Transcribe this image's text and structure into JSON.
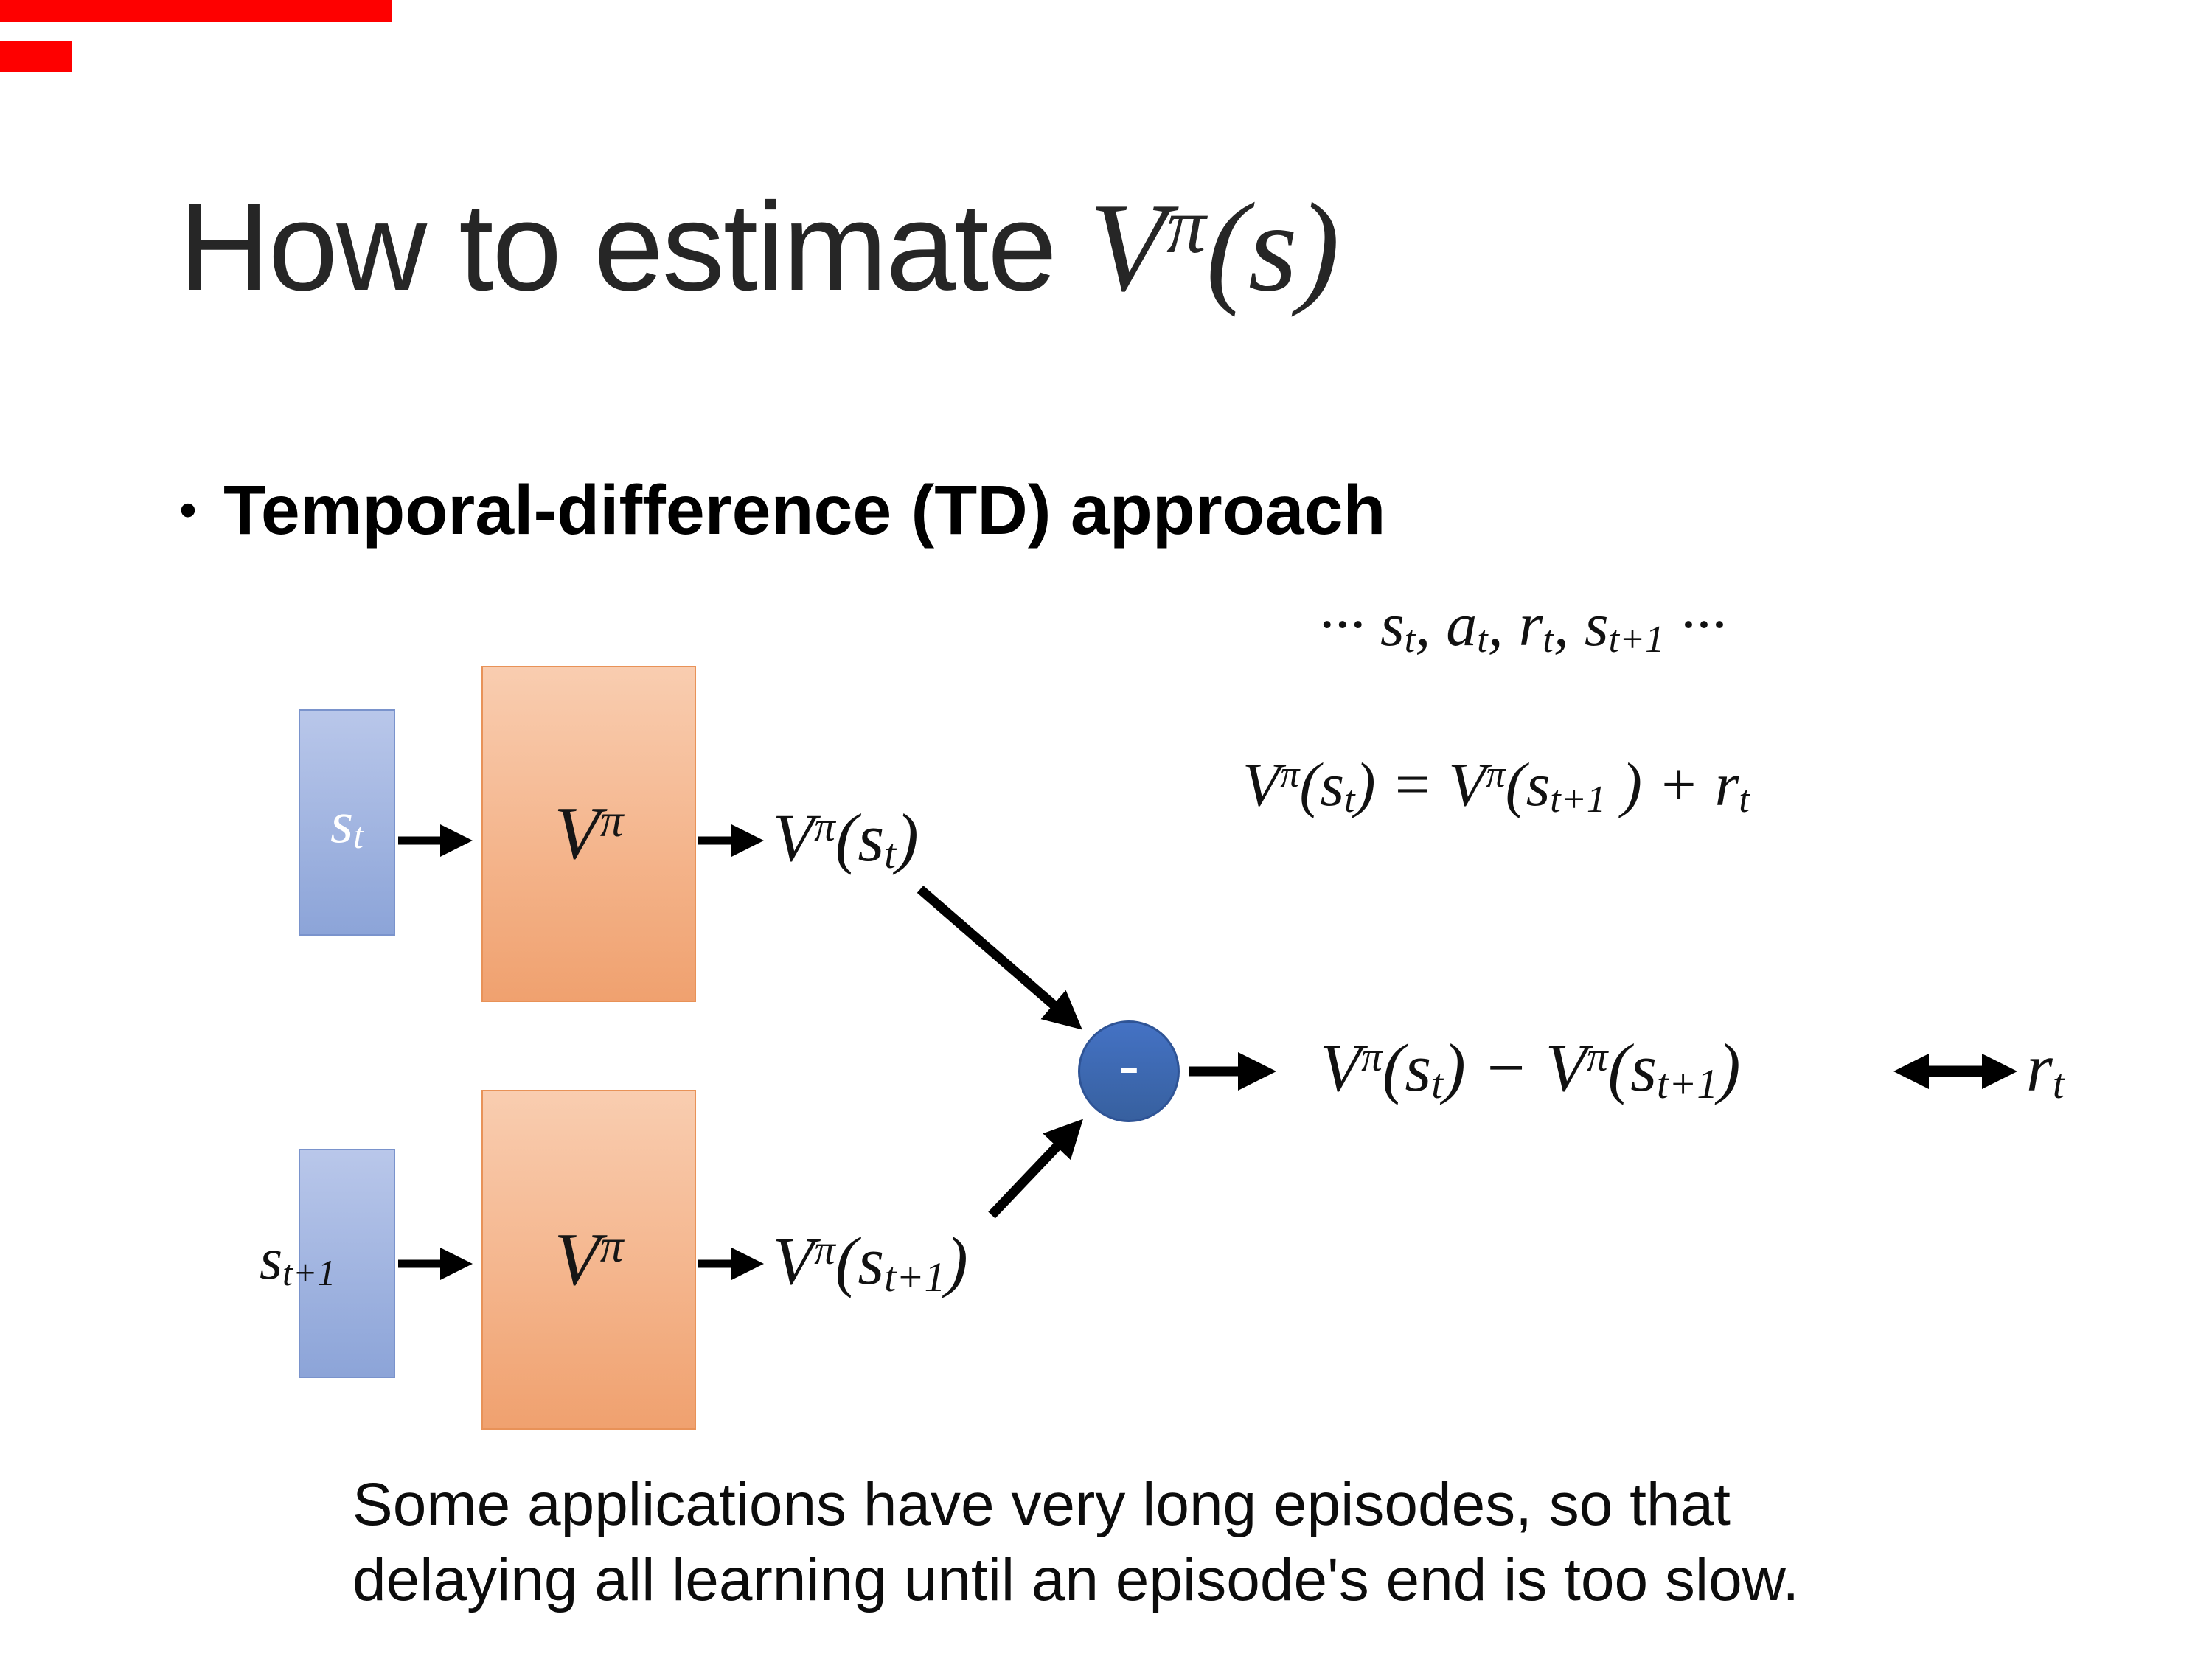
{
  "slide": {
    "title_text": "How to estimate ",
    "bullet_marker": "•",
    "bullet": "Temporal-difference (TD) approach",
    "footer_line1": "Some applications have very long episodes, so that",
    "footer_line2": "delaying all learning until an episode's end is too slow."
  },
  "math": {
    "title_math": [
      {
        "t": "V",
        "s": "n"
      },
      {
        "t": "π",
        "s": "sup"
      },
      {
        "t": "(s)",
        "s": "n"
      }
    ],
    "sequence": [
      {
        "t": "··· s",
        "s": "n"
      },
      {
        "t": "t",
        "s": "sub"
      },
      {
        "t": ", a",
        "s": "n"
      },
      {
        "t": "t",
        "s": "sub"
      },
      {
        "t": ", r",
        "s": "n"
      },
      {
        "t": "t",
        "s": "sub"
      },
      {
        "t": ", s",
        "s": "n"
      },
      {
        "t": "t+1",
        "s": "sub"
      },
      {
        "t": " ···",
        "s": "n"
      }
    ],
    "td_equation": [
      {
        "t": "V",
        "s": "n"
      },
      {
        "t": "π",
        "s": "sup"
      },
      {
        "t": "(s",
        "s": "n"
      },
      {
        "t": "t",
        "s": "sub"
      },
      {
        "t": ") = V",
        "s": "n"
      },
      {
        "t": "π",
        "s": "sup"
      },
      {
        "t": "(s",
        "s": "n"
      },
      {
        "t": "t+1",
        "s": "sub"
      },
      {
        "t": " ) + r",
        "s": "n"
      },
      {
        "t": "t",
        "s": "sub"
      }
    ],
    "s_t": [
      {
        "t": "s",
        "s": "n"
      },
      {
        "t": "t",
        "s": "sub"
      }
    ],
    "s_t1": [
      {
        "t": "s",
        "s": "n"
      },
      {
        "t": "t+1",
        "s": "sub"
      }
    ],
    "v_pi": [
      {
        "t": "V",
        "s": "n"
      },
      {
        "t": "π",
        "s": "sup"
      }
    ],
    "v_pi_st": [
      {
        "t": "V",
        "s": "n"
      },
      {
        "t": "π",
        "s": "sup"
      },
      {
        "t": "(s",
        "s": "n"
      },
      {
        "t": "t",
        "s": "sub"
      },
      {
        "t": ")",
        "s": "n"
      }
    ],
    "v_pi_st1": [
      {
        "t": "V",
        "s": "n"
      },
      {
        "t": "π",
        "s": "sup"
      },
      {
        "t": "(s",
        "s": "n"
      },
      {
        "t": "t+1",
        "s": "sub"
      },
      {
        "t": ")",
        "s": "n"
      }
    ],
    "difference": [
      {
        "t": "V",
        "s": "n"
      },
      {
        "t": "π",
        "s": "sup"
      },
      {
        "t": "(s",
        "s": "n"
      },
      {
        "t": "t",
        "s": "sub"
      },
      {
        "t": ") − V",
        "s": "n"
      },
      {
        "t": "π",
        "s": "sup"
      },
      {
        "t": "(s",
        "s": "n"
      },
      {
        "t": "t+1",
        "s": "sub"
      },
      {
        "t": ")",
        "s": "n"
      }
    ],
    "r_t": [
      {
        "t": "r",
        "s": "n"
      },
      {
        "t": "t",
        "s": "sub"
      }
    ],
    "minus": "-"
  },
  "colors": {
    "accent_red": "#fe0000",
    "title_color": "#262626",
    "state_box_light": "#b9c7ea",
    "state_box_dark": "#8ca4d8",
    "state_box_border": "#7a93cc",
    "value_box_light": "#f9cdb0",
    "value_box_dark": "#f0a16f",
    "value_box_border": "#e89258",
    "sum_node_fill": "#4472c4",
    "sum_node_border": "#2f5496",
    "arrow_color": "#000000"
  }
}
